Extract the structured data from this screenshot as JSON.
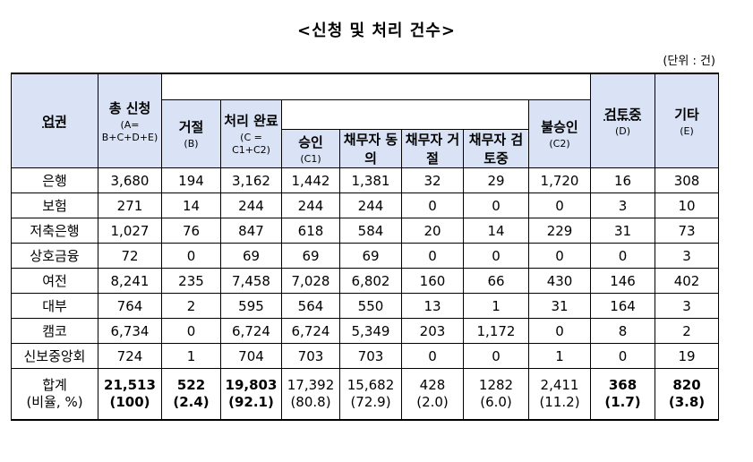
{
  "title": "<신청 및 처리 건수>",
  "unit": "(단위 : 건)",
  "headers": {
    "category": "업권",
    "total": {
      "label": "총 신청",
      "sub": "(A= B+C+D+E)"
    },
    "reject": {
      "label": "거절",
      "sub": "(B)"
    },
    "processed": {
      "label": "처리 완료",
      "sub": "(C = C1+C2)"
    },
    "approve": {
      "label": "승인",
      "sub": "(C1)"
    },
    "debtor_agree": "채무자 동의",
    "debtor_reject": "채무자 거절",
    "debtor_review": "채무자 검토중",
    "disapprove": {
      "label": "불승인",
      "sub": "(C2)"
    },
    "reviewing": {
      "label": "검토중",
      "sub": "(D)"
    },
    "other": {
      "label": "기타",
      "sub": "(E)"
    }
  },
  "rows": [
    {
      "cat": "은행",
      "v": [
        "3,680",
        "194",
        "3,162",
        "1,442",
        "1,381",
        "32",
        "29",
        "1,720",
        "16",
        "308"
      ]
    },
    {
      "cat": "보험",
      "v": [
        "271",
        "14",
        "244",
        "244",
        "244",
        "0",
        "0",
        "0",
        "3",
        "10"
      ]
    },
    {
      "cat": "저축은행",
      "v": [
        "1,027",
        "76",
        "847",
        "618",
        "584",
        "20",
        "14",
        "229",
        "31",
        "73"
      ]
    },
    {
      "cat": "상호금융",
      "v": [
        "72",
        "0",
        "69",
        "69",
        "69",
        "0",
        "0",
        "0",
        "0",
        "3"
      ]
    },
    {
      "cat": "여전",
      "v": [
        "8,241",
        "235",
        "7,458",
        "7,028",
        "6,802",
        "160",
        "66",
        "430",
        "146",
        "402"
      ]
    },
    {
      "cat": "대부",
      "v": [
        "764",
        "2",
        "595",
        "564",
        "550",
        "13",
        "1",
        "31",
        "164",
        "3"
      ]
    },
    {
      "cat": "캠코",
      "v": [
        "6,734",
        "0",
        "6,724",
        "6,724",
        "5,349",
        "203",
        "1,172",
        "0",
        "8",
        "2"
      ]
    },
    {
      "cat": "신보중앙회",
      "v": [
        "724",
        "1",
        "704",
        "703",
        "703",
        "0",
        "0",
        "1",
        "0",
        "19"
      ]
    }
  ],
  "total_row": {
    "cat1": "합계",
    "cat2": "(비율, %)",
    "v": [
      [
        "21,513",
        "(100)"
      ],
      [
        "522",
        "(2.4)"
      ],
      [
        "19,803",
        "(92.1)"
      ],
      [
        "17,392",
        "(80.8)"
      ],
      [
        "15,682",
        "(72.9)"
      ],
      [
        "428",
        "(2.0)"
      ],
      [
        "1282",
        "(6.0)"
      ],
      [
        "2,411",
        "(11.2)"
      ],
      [
        "368",
        "(1.7)"
      ],
      [
        "820",
        "(3.8)"
      ]
    ]
  }
}
